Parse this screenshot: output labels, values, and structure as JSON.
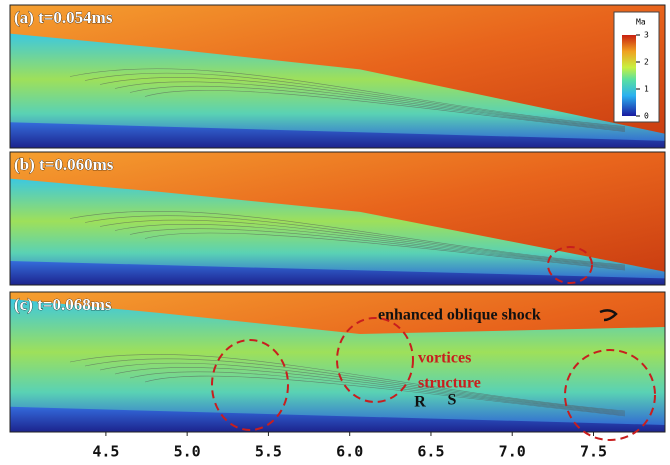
{
  "panels": [
    {
      "label": "(a) t=0.054ms"
    },
    {
      "label": "(b) t=0.060ms"
    },
    {
      "label": "(c) t=0.068ms"
    }
  ],
  "annotations": {
    "shock": "enhanced oblique shock",
    "vortices": "vortices",
    "structure": "structure",
    "r": "R",
    "s": "S"
  },
  "colorbar": {
    "title": "Ma",
    "lim": [
      0,
      3
    ],
    "ticks": [
      0,
      1,
      2,
      3
    ]
  },
  "x_axis": {
    "lim": [
      3.91,
      7.94
    ],
    "ticks": [
      4.5,
      {
        "value": 5,
        "label": "5.0"
      },
      5.5,
      {
        "value": 6,
        "label": "6.0"
      },
      6.5,
      {
        "value": 7,
        "label": "7.0"
      },
      7.5
    ]
  }
}
